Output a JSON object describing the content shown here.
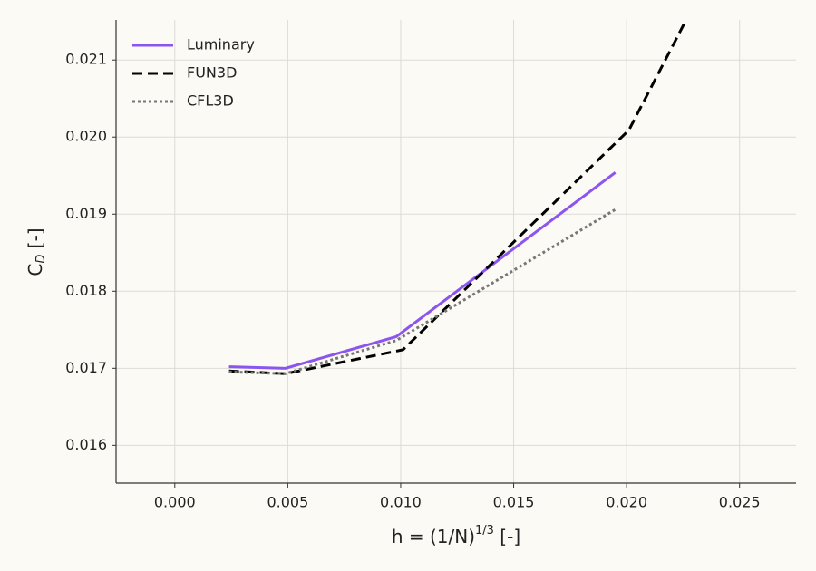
{
  "chart_data": {
    "type": "line",
    "xlabel": [
      "h = (1/N)",
      "1/3",
      " [-]"
    ],
    "ylabel": [
      "C",
      "D",
      " [-]"
    ],
    "xlim": [
      -0.0026,
      0.0275
    ],
    "ylim": [
      0.01551,
      0.02152
    ],
    "xticks": [
      {
        "value": 0,
        "label": "0.000"
      },
      0.005,
      {
        "value": 0.01,
        "label": "0.010"
      },
      0.015,
      {
        "value": 0.02,
        "label": "0.020"
      },
      0.025
    ],
    "yticks": [
      0.016,
      0.017,
      0.018,
      0.019,
      {
        "value": 0.02,
        "label": "0.020"
      },
      0.021
    ],
    "grid": true,
    "legend": "upper-left",
    "series": [
      {
        "name": "Luminary",
        "color": "#8c55f0",
        "style": "solid",
        "x": [
          0.0024,
          0.0049,
          0.0098,
          0.0195
        ],
        "values": [
          0.01702,
          0.017,
          0.01741,
          0.01954
        ]
      },
      {
        "name": "FUN3D",
        "color": "#000000",
        "style": "dashed",
        "x": [
          0.0024,
          0.0049,
          0.0101,
          0.0201,
          0.0226
        ],
        "values": [
          0.016965,
          0.01693,
          0.01724,
          0.02009,
          0.0215
        ]
      },
      {
        "name": "CFL3D",
        "color": "#777777",
        "style": "dotted",
        "x": [
          0.0024,
          0.0049,
          0.0098,
          0.0195
        ],
        "values": [
          0.016953,
          0.01693,
          0.01736,
          0.01906
        ]
      }
    ]
  }
}
